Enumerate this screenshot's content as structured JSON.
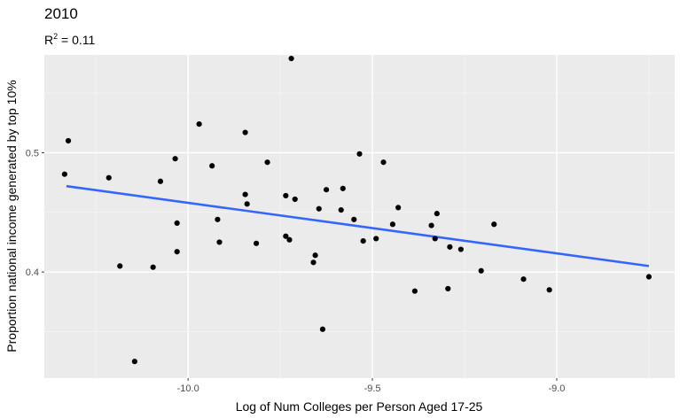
{
  "chart_data": {
    "type": "scatter",
    "title": "2010",
    "subtitle": {
      "r_label": "R",
      "r_exponent": "2",
      "r_value": " = 0.11"
    },
    "xlabel": "Log of Num Colleges per Person Aged 17-25",
    "ylabel": "Proportion national income generated by top 10%",
    "xlim": [
      -10.39,
      -8.68
    ],
    "ylim": [
      0.311,
      0.582
    ],
    "x_ticks": [
      -10.0,
      -9.5,
      -9.0
    ],
    "x_tick_labels": [
      "-10.0",
      "-9.5",
      "-9.0"
    ],
    "y_ticks": [
      0.4,
      0.5
    ],
    "y_tick_labels": [
      "0.4",
      "0.5"
    ],
    "grid": true,
    "fit_line": {
      "color": "#3366ff",
      "x": [
        -10.33,
        -8.75
      ],
      "y": [
        0.472,
        0.405
      ]
    },
    "points": {
      "color": "#000000",
      "x": [
        -10.335,
        -10.325,
        -10.215,
        -10.185,
        -10.145,
        -10.095,
        -10.075,
        -10.035,
        -10.03,
        -10.03,
        -9.97,
        -9.935,
        -9.92,
        -9.915,
        -9.845,
        -9.845,
        -9.84,
        -9.815,
        -9.785,
        -9.735,
        -9.735,
        -9.725,
        -9.72,
        -9.71,
        -9.66,
        -9.655,
        -9.645,
        -9.635,
        -9.625,
        -9.585,
        -9.58,
        -9.55,
        -9.535,
        -9.525,
        -9.49,
        -9.47,
        -9.445,
        -9.43,
        -9.385,
        -9.34,
        -9.33,
        -9.325,
        -9.295,
        -9.29,
        -9.26,
        -9.205,
        -9.17,
        -9.09,
        -9.02,
        -8.75
      ],
      "y": [
        0.482,
        0.51,
        0.479,
        0.405,
        0.325,
        0.404,
        0.476,
        0.495,
        0.441,
        0.417,
        0.524,
        0.489,
        0.444,
        0.425,
        0.517,
        0.465,
        0.457,
        0.424,
        0.492,
        0.464,
        0.43,
        0.427,
        0.579,
        0.461,
        0.408,
        0.414,
        0.453,
        0.352,
        0.469,
        0.452,
        0.47,
        0.444,
        0.499,
        0.426,
        0.428,
        0.492,
        0.44,
        0.454,
        0.384,
        0.439,
        0.428,
        0.449,
        0.386,
        0.421,
        0.419,
        0.401,
        0.44,
        0.394,
        0.385,
        0.396
      ]
    }
  }
}
